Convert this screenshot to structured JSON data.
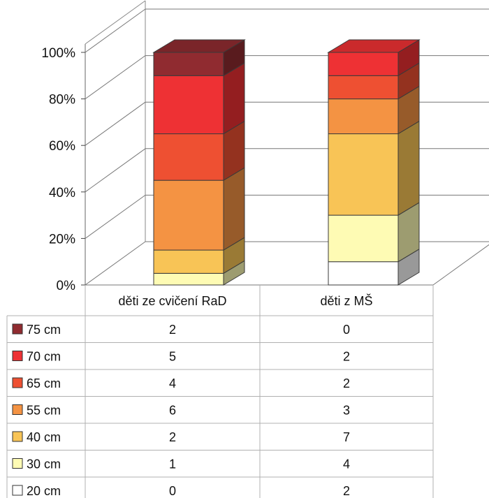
{
  "chart_data": {
    "type": "bar",
    "stacked": "percent",
    "three_d": true,
    "title": "",
    "xlabel": "",
    "ylabel": "",
    "ylim": [
      0,
      100
    ],
    "y_ticks": [
      "0%",
      "20%",
      "40%",
      "60%",
      "80%",
      "100%"
    ],
    "grid": true,
    "legend": "data-table",
    "categories": [
      "děti ze cvičení RaD",
      "děti z MŠ"
    ],
    "series": [
      {
        "name": "20 cm",
        "color": "#ffffff",
        "values": [
          0,
          2
        ]
      },
      {
        "name": "30 cm",
        "color": "#fefbb4",
        "values": [
          1,
          4
        ]
      },
      {
        "name": "40 cm",
        "color": "#f8c456",
        "values": [
          2,
          7
        ]
      },
      {
        "name": "55 cm",
        "color": "#f49343",
        "values": [
          6,
          3
        ]
      },
      {
        "name": "65 cm",
        "color": "#ee5032",
        "values": [
          4,
          2
        ]
      },
      {
        "name": "70 cm",
        "color": "#ee3134",
        "values": [
          5,
          2
        ]
      },
      {
        "name": "75 cm",
        "color": "#902b30",
        "values": [
          2,
          0
        ]
      }
    ]
  }
}
